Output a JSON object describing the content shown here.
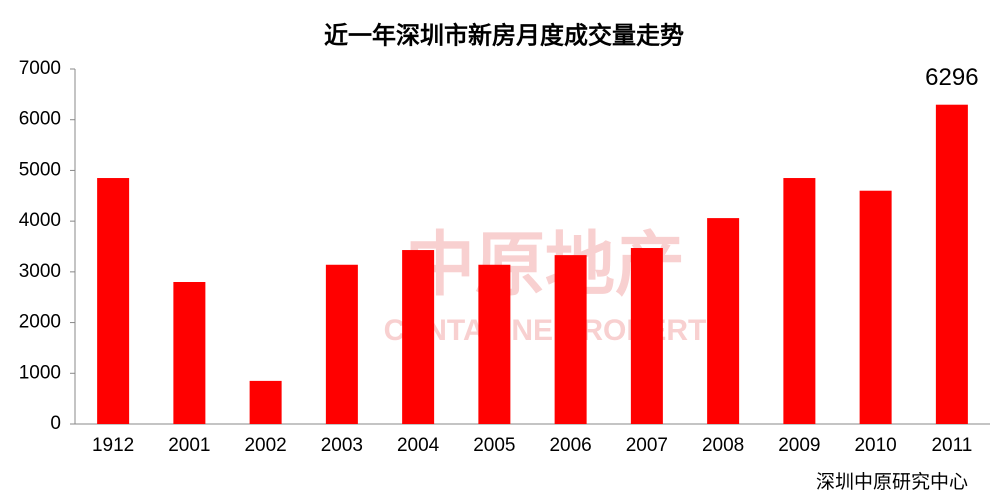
{
  "chart_data": {
    "type": "bar",
    "title": "近一年深圳市新房月度成交量走势",
    "categories": [
      "1912",
      "2001",
      "2002",
      "2003",
      "2004",
      "2005",
      "2006",
      "2007",
      "2008",
      "2009",
      "2010",
      "2011"
    ],
    "values": [
      4850,
      2800,
      850,
      3140,
      3430,
      3140,
      3330,
      3470,
      4060,
      4850,
      4600,
      6296
    ],
    "value_labels": [
      null,
      null,
      null,
      null,
      null,
      null,
      null,
      null,
      null,
      null,
      null,
      "6296"
    ],
    "color": "#ff0000",
    "ylim": [
      0,
      7000
    ],
    "yticks": [
      0,
      1000,
      2000,
      3000,
      4000,
      5000,
      6000,
      7000
    ],
    "grid": false,
    "source": "深圳中原研究中心",
    "watermark": {
      "text": "中原地产",
      "subtext": "CENTALINE PROPERTY"
    }
  }
}
